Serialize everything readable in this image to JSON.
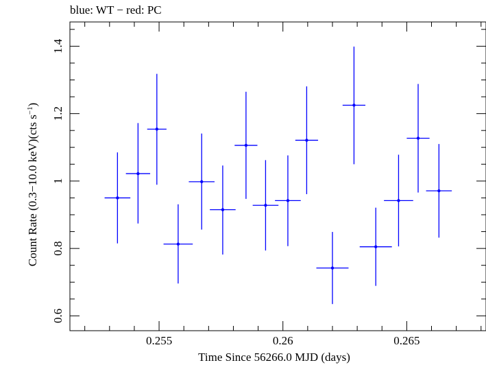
{
  "chart_data": {
    "type": "scatter",
    "title": "blue: WT − red: PC",
    "xlabel": "Time Since 56266.0 MJD (days)",
    "ylabel": "Count Rate (0.3−10.0 keV)(cts s",
    "ylabel_sup": "−1",
    "ylabel_close": ")",
    "xlim": [
      0.2514,
      0.2682
    ],
    "ylim": [
      0.556,
      1.472
    ],
    "x_ticks": [
      0.255,
      0.26,
      0.265
    ],
    "x_tick_labels": [
      "0.255",
      "0.26",
      "0.265"
    ],
    "y_ticks": [
      0.6,
      0.8,
      1.0,
      1.2,
      1.4
    ],
    "y_tick_labels": [
      "0.6",
      "0.8",
      "1",
      "1.2",
      "1.4"
    ],
    "grid": false,
    "series": [
      {
        "color": "#0000ff",
        "points": [
          {
            "x": 0.25332,
            "xerr": 0.00052,
            "y": 0.95,
            "yerr_lo": 0.135,
            "yerr_hi": 0.135
          },
          {
            "x": 0.25415,
            "xerr": 0.00049,
            "y": 1.022,
            "yerr_lo": 0.148,
            "yerr_hi": 0.15
          },
          {
            "x": 0.25491,
            "xerr": 0.00039,
            "y": 1.154,
            "yerr_lo": 0.165,
            "yerr_hi": 0.164
          },
          {
            "x": 0.25577,
            "xerr": 0.00059,
            "y": 0.813,
            "yerr_lo": 0.117,
            "yerr_hi": 0.118
          },
          {
            "x": 0.25672,
            "xerr": 0.00052,
            "y": 0.998,
            "yerr_lo": 0.142,
            "yerr_hi": 0.143
          },
          {
            "x": 0.25757,
            "xerr": 0.00052,
            "y": 0.915,
            "yerr_lo": 0.133,
            "yerr_hi": 0.131
          },
          {
            "x": 0.25851,
            "xerr": 0.00046,
            "y": 1.106,
            "yerr_lo": 0.159,
            "yerr_hi": 0.159
          },
          {
            "x": 0.2593,
            "xerr": 0.00052,
            "y": 0.928,
            "yerr_lo": 0.134,
            "yerr_hi": 0.134
          },
          {
            "x": 0.2602,
            "xerr": 0.00052,
            "y": 0.942,
            "yerr_lo": 0.135,
            "yerr_hi": 0.134
          },
          {
            "x": 0.26096,
            "xerr": 0.00046,
            "y": 1.121,
            "yerr_lo": 0.16,
            "yerr_hi": 0.16
          },
          {
            "x": 0.262,
            "xerr": 0.00065,
            "y": 0.742,
            "yerr_lo": 0.107,
            "yerr_hi": 0.107
          },
          {
            "x": 0.26287,
            "xerr": 0.00046,
            "y": 1.225,
            "yerr_lo": 0.175,
            "yerr_hi": 0.174
          },
          {
            "x": 0.26375,
            "xerr": 0.00065,
            "y": 0.805,
            "yerr_lo": 0.116,
            "yerr_hi": 0.116
          },
          {
            "x": 0.26467,
            "xerr": 0.00059,
            "y": 0.942,
            "yerr_lo": 0.136,
            "yerr_hi": 0.136
          },
          {
            "x": 0.26546,
            "xerr": 0.00046,
            "y": 1.127,
            "yerr_lo": 0.161,
            "yerr_hi": 0.161
          },
          {
            "x": 0.2663,
            "xerr": 0.00052,
            "y": 0.971,
            "yerr_lo": 0.139,
            "yerr_hi": 0.139
          }
        ]
      }
    ]
  }
}
